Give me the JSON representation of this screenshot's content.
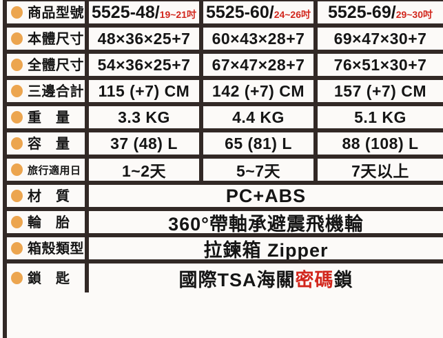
{
  "colors": {
    "border": "#322926",
    "bullet": "#ECA54F",
    "red": "#D2271D",
    "text": "#151515",
    "background": "#FCFAF8"
  },
  "table": {
    "rows": [
      {
        "label": "商品型號",
        "cells": [
          {
            "main": "5525-48/",
            "inch": "19~21吋"
          },
          {
            "main": "5525-60/",
            "inch": "24~26吋"
          },
          {
            "main": "5525-69/",
            "inch": "29~30吋"
          }
        ]
      },
      {
        "label": "本體尺寸",
        "cells": [
          "48×36×25+7",
          "60×43×28+7",
          "69×47×30+7"
        ]
      },
      {
        "label": "全體尺寸",
        "cells": [
          "54×36×25+7",
          "67×47×28+7",
          "76×51×30+7"
        ]
      },
      {
        "label": "三邊合計",
        "cells": [
          "115 (+7) CM",
          "142 (+7) CM",
          "157 (+7) CM"
        ]
      },
      {
        "label": "重　量",
        "cells": [
          "3.3 KG",
          "4.4 KG",
          "5.1 KG"
        ]
      },
      {
        "label": "容　量",
        "cells": [
          "37 (48) L",
          "65 (81) L",
          "88 (108) L"
        ]
      },
      {
        "label": "旅行適用日",
        "small_label": true,
        "cells": [
          "1~2天",
          "5~7天",
          "7天以上"
        ]
      },
      {
        "label": "材　質",
        "span": "PC+ABS"
      },
      {
        "label": "輪　胎",
        "span": "360°帶軸承避震飛機輪"
      },
      {
        "label": "箱殼類型",
        "span": "拉鍊箱 Zipper"
      },
      {
        "label": "鎖　匙",
        "span_parts": [
          {
            "t": "國際TSA海關",
            "red": false
          },
          {
            "t": "密碼",
            "red": true
          },
          {
            "t": "鎖",
            "red": false
          }
        ]
      }
    ]
  }
}
